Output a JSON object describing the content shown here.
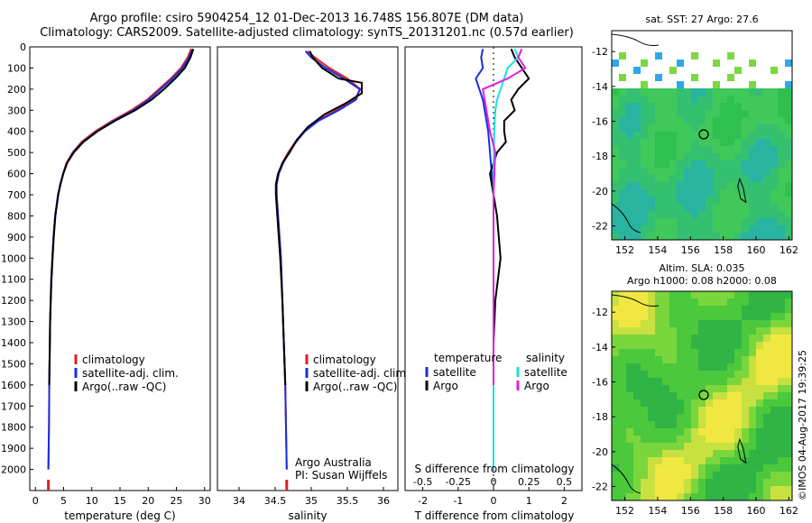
{
  "header": {
    "title_line1": "Argo profile: csiro 5904254_12 01-Dec-2013 16.748S 156.807E (DM data)",
    "title_line2": "Climatology: CARS2009. Satellite-adjusted climatology: synTS_20131201.nc (0.57d earlier)"
  },
  "footer_stamp": "©IMOS 04-Aug-2017 19:39:25",
  "colors": {
    "climatology": "#e02020",
    "satellite": "#1a2ee0",
    "argo": "#000000",
    "salinity_satellite": "#1ee0e0",
    "salinity_argo": "#e020e0"
  },
  "chart_data": [
    {
      "type": "line",
      "id": "temperature",
      "xlabel": "temperature (deg C)",
      "ylabel": "",
      "xlim": [
        -1,
        31
      ],
      "ylim": [
        2100,
        0
      ],
      "xticks": [
        0,
        5,
        10,
        15,
        20,
        25,
        30
      ],
      "yticks": [
        0,
        100,
        200,
        300,
        400,
        500,
        600,
        700,
        800,
        900,
        1000,
        1100,
        1200,
        1300,
        1400,
        1500,
        1600,
        1700,
        1800,
        1900,
        2000
      ],
      "legend": [
        "climatology",
        "satellite-adj. clim.",
        "Argo(..raw -QC)"
      ],
      "legend_position": "lower-center",
      "series": [
        {
          "name": "climatology",
          "color": "#e02020",
          "x": [
            27.6,
            27.0,
            25.8,
            24.0,
            21.9,
            19.8,
            17.0,
            13.6,
            10.6,
            8.2,
            6.6,
            5.5,
            4.9,
            4.4,
            4.0,
            3.5,
            3.2,
            3.0,
            2.8,
            2.7,
            2.6,
            2.55,
            2.5,
            2.45,
            2.4,
            2.3
          ],
          "y": [
            10,
            50,
            100,
            150,
            200,
            250,
            300,
            350,
            400,
            450,
            500,
            550,
            600,
            650,
            700,
            800,
            900,
            1000,
            1100,
            1200,
            1300,
            1400,
            1500,
            1600,
            1800,
            2000
          ]
        },
        {
          "name": "satellite-adj. clim.",
          "color": "#1a2ee0",
          "x": [
            27.9,
            27.2,
            26.1,
            24.3,
            22.2,
            20.1,
            17.4,
            13.9,
            10.9,
            8.4,
            6.7,
            5.6,
            4.9,
            4.4,
            4.0,
            3.5,
            3.2,
            3.0,
            2.8,
            2.7,
            2.6,
            2.55,
            2.5,
            2.45,
            2.4,
            2.3
          ],
          "y": [
            10,
            50,
            100,
            150,
            200,
            250,
            300,
            350,
            400,
            450,
            500,
            550,
            600,
            650,
            700,
            800,
            900,
            1000,
            1100,
            1200,
            1300,
            1400,
            1500,
            1600,
            1800,
            2000
          ]
        },
        {
          "name": "Argo(..raw -QC)",
          "color": "#000000",
          "x": [
            28.0,
            27.5,
            26.5,
            24.8,
            22.8,
            20.6,
            17.7,
            14.1,
            11.0,
            8.5,
            6.8,
            5.6,
            4.95,
            4.45,
            4.05,
            3.55,
            3.25,
            3.05,
            2.85,
            2.72,
            2.62,
            2.56,
            2.5,
            2.45
          ],
          "y": [
            10,
            50,
            100,
            150,
            200,
            250,
            300,
            350,
            400,
            450,
            500,
            550,
            600,
            650,
            700,
            800,
            900,
            1000,
            1100,
            1200,
            1300,
            1400,
            1500,
            1600
          ]
        }
      ]
    },
    {
      "type": "line",
      "id": "salinity",
      "xlabel": "salinity",
      "ylabel": "",
      "xlim": [
        33.7,
        36.2
      ],
      "ylim": [
        2100,
        0
      ],
      "xticks": [
        34,
        34.5,
        35,
        35.5,
        36
      ],
      "legend": [
        "climatology",
        "satellite-adj. clim.",
        "Argo(..raw -QC)"
      ],
      "legend_position": "lower-center",
      "annotation": [
        "Argo Australia",
        "PI: Susan Wijffels"
      ],
      "series": [
        {
          "name": "climatology",
          "color": "#e02020",
          "x": [
            34.95,
            35.05,
            35.25,
            35.5,
            35.68,
            35.6,
            35.35,
            35.08,
            34.9,
            34.78,
            34.68,
            34.6,
            34.55,
            34.52,
            34.52,
            34.54,
            34.56,
            34.58,
            34.6,
            34.62,
            34.64,
            34.66
          ],
          "y": [
            20,
            50,
            100,
            150,
            200,
            250,
            300,
            350,
            400,
            450,
            500,
            550,
            600,
            650,
            700,
            800,
            900,
            1000,
            1200,
            1400,
            1600,
            2000
          ]
        },
        {
          "name": "satellite-adj. clim.",
          "color": "#1a2ee0",
          "x": [
            34.92,
            35.0,
            35.2,
            35.45,
            35.67,
            35.62,
            35.38,
            35.1,
            34.91,
            34.79,
            34.69,
            34.61,
            34.55,
            34.52,
            34.52,
            34.54,
            34.56,
            34.58,
            34.6,
            34.62,
            34.64,
            34.66
          ],
          "y": [
            20,
            50,
            100,
            150,
            200,
            250,
            300,
            350,
            400,
            450,
            500,
            550,
            600,
            650,
            700,
            800,
            900,
            1000,
            1200,
            1400,
            1600,
            2000
          ]
        },
        {
          "name": "Argo(..raw -QC)",
          "color": "#000000",
          "x": [
            34.98,
            35.02,
            35.15,
            35.38,
            35.7,
            35.7,
            35.46,
            35.18,
            34.95,
            34.8,
            34.7,
            34.6,
            34.54,
            34.51,
            34.51,
            34.53,
            34.55,
            34.57,
            34.6,
            34.62,
            34.64
          ],
          "y": [
            20,
            50,
            100,
            150,
            170,
            220,
            270,
            320,
            380,
            440,
            500,
            550,
            600,
            650,
            700,
            800,
            900,
            1000,
            1200,
            1400,
            1600
          ]
        }
      ]
    },
    {
      "type": "line",
      "id": "difference",
      "xlabel_bottom": "T difference from climatology",
      "xlabel_top": "S difference from climatology",
      "xlim": [
        -2.5,
        2.5
      ],
      "ylim": [
        2100,
        0
      ],
      "xticks_T": [
        -2,
        -1,
        0,
        1,
        2
      ],
      "xticks_S": [
        -0.5,
        -0.25,
        0,
        0.25,
        0.5
      ],
      "legend_temperature_title": "temperature",
      "legend_salinity_title": "salinity",
      "legend": [
        "satellite",
        "Argo",
        "satellite",
        "Argo"
      ],
      "series": [
        {
          "name": "T satellite",
          "color": "#1a2ee0",
          "x": [
            -0.3,
            -0.35,
            -0.3,
            -0.5,
            -0.4,
            -0.3,
            -0.25,
            -0.2,
            -0.15,
            -0.1,
            -0.05,
            0,
            0,
            0
          ],
          "y": [
            10,
            50,
            100,
            150,
            200,
            250,
            300,
            350,
            400,
            500,
            600,
            700,
            900,
            2000
          ]
        },
        {
          "name": "T Argo",
          "color": "#000000",
          "x": [
            0.5,
            0.6,
            0.8,
            1.0,
            0.7,
            0.5,
            0.6,
            0.3,
            0.3,
            0.35,
            0.1,
            -0.1,
            0.1,
            0.2,
            0.05,
            0,
            0
          ],
          "y": [
            10,
            50,
            100,
            150,
            200,
            250,
            300,
            350,
            400,
            450,
            500,
            600,
            800,
            1000,
            1200,
            1400,
            1600
          ]
        },
        {
          "name": "S satellite",
          "color": "#1ee0e0",
          "x": [
            0.6,
            0.7,
            0.4,
            0.3,
            0.2,
            0.1,
            0.05,
            0.02,
            0,
            0
          ],
          "y": [
            10,
            50,
            100,
            150,
            200,
            250,
            300,
            400,
            600,
            2000
          ]
        },
        {
          "name": "S Argo",
          "color": "#e020e0",
          "x": [
            0.8,
            0.7,
            0.9,
            0.4,
            -0.3,
            -0.2,
            -0.1,
            0.05,
            0,
            0
          ],
          "y": [
            10,
            50,
            100,
            150,
            200,
            300,
            400,
            500,
            700,
            1600
          ]
        }
      ]
    },
    {
      "type": "heatmap",
      "id": "sst_map",
      "title": "sat. SST: 27 Argo: 27.6",
      "xticks": [
        152,
        154,
        156,
        158,
        160,
        162
      ],
      "yticks": [
        -12,
        -14,
        -16,
        -18,
        -20,
        -22
      ],
      "xlim": [
        151.2,
        162.2
      ],
      "ylim": [
        -22.8,
        -10.8
      ],
      "profile_location": [
        156.807,
        -16.748
      ]
    },
    {
      "type": "heatmap",
      "id": "sla_map",
      "title_line1": "Altim. SLA: 0.035",
      "title_line2": "Argo h1000: 0.08 h2000: 0.08",
      "xticks": [
        152,
        154,
        156,
        158,
        160,
        162
      ],
      "yticks": [
        -12,
        -14,
        -16,
        -18,
        -20,
        -22
      ],
      "xlim": [
        151.2,
        162.2
      ],
      "ylim": [
        -22.8,
        -10.8
      ],
      "profile_location": [
        156.807,
        -16.748
      ]
    }
  ]
}
